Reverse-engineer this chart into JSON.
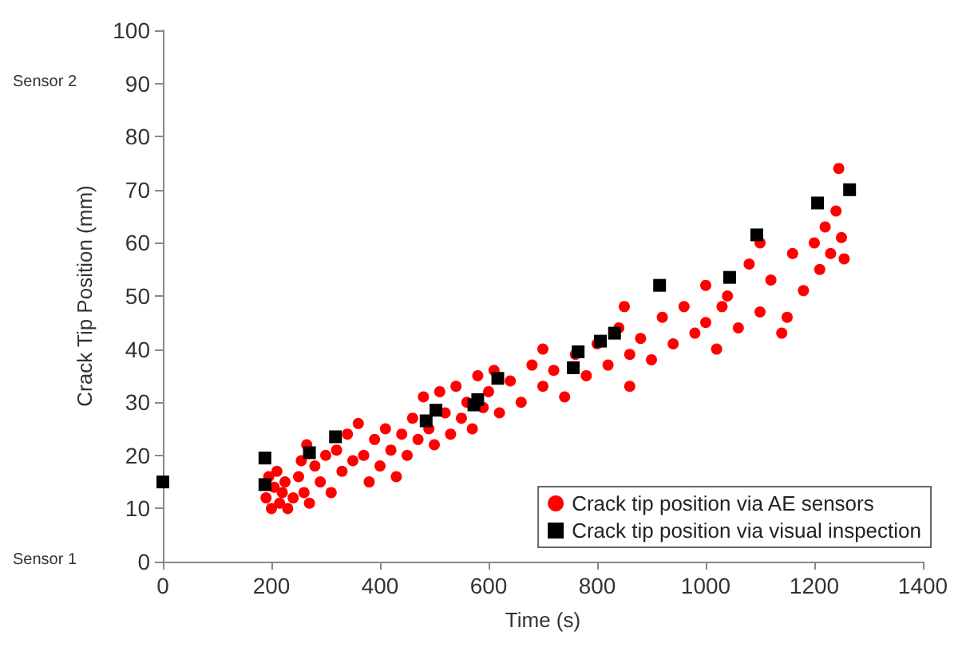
{
  "chart_data": {
    "type": "scatter",
    "xlabel": "Time (s)",
    "ylabel": "Crack Tip Position (mm)",
    "xlim": [
      0,
      1400
    ],
    "xticks": [
      0,
      200,
      400,
      600,
      800,
      1000,
      1200,
      1400
    ],
    "ylim": [
      0,
      100
    ],
    "yticks": [
      0,
      10,
      20,
      30,
      40,
      50,
      60,
      70,
      80,
      90,
      100
    ],
    "grid": false,
    "legend": "bottom right",
    "annotations": [
      "Sensor 1",
      "Sensor 2"
    ],
    "series": [
      {
        "name": "Crack tip position via AE sensors",
        "color": "#ff0000",
        "marker": "circle",
        "x": [
          190,
          195,
          200,
          205,
          210,
          215,
          220,
          225,
          230,
          240,
          250,
          255,
          260,
          265,
          270,
          280,
          290,
          300,
          310,
          320,
          330,
          340,
          350,
          360,
          370,
          380,
          390,
          400,
          410,
          420,
          430,
          440,
          450,
          460,
          470,
          480,
          490,
          500,
          510,
          520,
          530,
          540,
          550,
          560,
          570,
          580,
          590,
          600,
          610,
          620,
          640,
          660,
          680,
          700,
          700,
          720,
          740,
          760,
          780,
          800,
          820,
          840,
          850,
          860,
          860,
          880,
          900,
          920,
          940,
          960,
          980,
          1000,
          1000,
          1020,
          1030,
          1040,
          1060,
          1080,
          1100,
          1100,
          1120,
          1140,
          1150,
          1160,
          1180,
          1200,
          1210,
          1220,
          1230,
          1240,
          1245,
          1250,
          1255
        ],
        "values": [
          12,
          16,
          10,
          14,
          17,
          11,
          13,
          15,
          10,
          12,
          16,
          19,
          13,
          22,
          11,
          18,
          15,
          20,
          13,
          21,
          17,
          24,
          19,
          26,
          20,
          15,
          23,
          18,
          25,
          21,
          16,
          24,
          20,
          27,
          23,
          31,
          25,
          22,
          32,
          28,
          24,
          33,
          27,
          30,
          25,
          35,
          29,
          32,
          36,
          28,
          34,
          30,
          37,
          33,
          40,
          36,
          31,
          39,
          35,
          41,
          37,
          44,
          48,
          39,
          33,
          42,
          38,
          46,
          41,
          48,
          43,
          45,
          52,
          40,
          48,
          50,
          44,
          56,
          47,
          60,
          53,
          43,
          46,
          58,
          51,
          60,
          55,
          63,
          58,
          66,
          74,
          61,
          57
        ]
      },
      {
        "name": "Crack tip position via visual inspection",
        "color": "#000000",
        "marker": "square",
        "x": [
          0,
          188,
          188,
          270,
          318,
          485,
          503,
          573,
          580,
          617,
          756,
          765,
          806,
          832,
          915,
          1044,
          1094,
          1206,
          1265
        ],
        "values": [
          15,
          14.5,
          19.5,
          20.5,
          23.5,
          26.5,
          28.5,
          29.5,
          30.5,
          34.5,
          36.5,
          39.5,
          41.5,
          43,
          52,
          53.5,
          61.5,
          67.5,
          70
        ]
      }
    ]
  }
}
